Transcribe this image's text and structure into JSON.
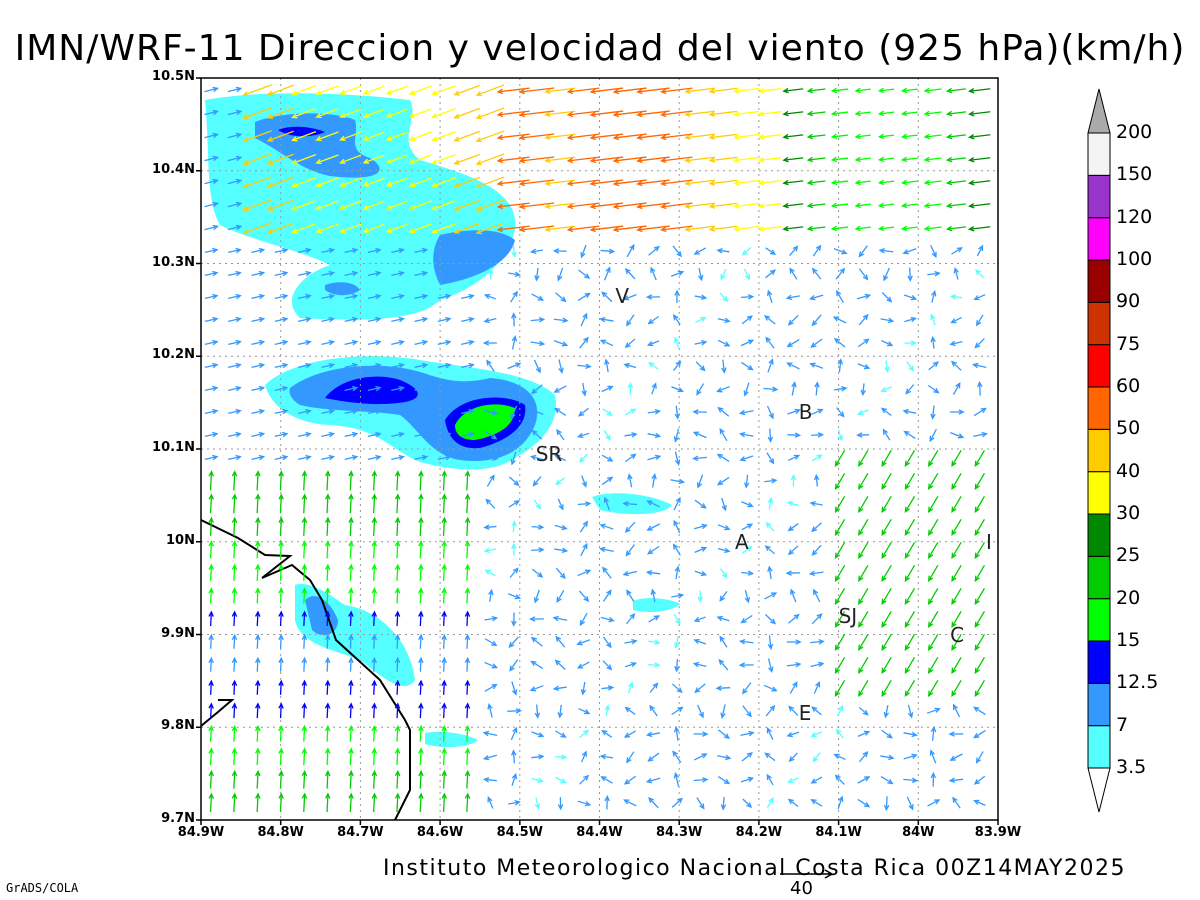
{
  "title": "IMN/WRF-11 Direccion y velocidad del viento (925 hPa)(km/h)",
  "footer": "Instituto Meteorologico Nacional Costa Rica 00Z14MAY2025",
  "software": "GrADS/COLA",
  "reference_vector": {
    "label": "40",
    "value": 40,
    "units": "km/h"
  },
  "axes": {
    "x_labels": [
      "84.9W",
      "84.8W",
      "84.7W",
      "84.6W",
      "84.5W",
      "84.4W",
      "84.3W",
      "84.2W",
      "84.1W",
      "84W",
      "83.9W"
    ],
    "y_labels": [
      "10.5N",
      "10.4N",
      "10.3N",
      "10.2N",
      "10.1N",
      "10N",
      "9.9N",
      "9.8N",
      "9.7N"
    ],
    "x_range": [
      -84.9,
      -83.9
    ],
    "y_range": [
      9.7,
      10.5
    ],
    "grid": "dotted"
  },
  "place_labels": [
    {
      "text": "V",
      "lon": -84.37,
      "lat": 10.265
    },
    {
      "text": "B",
      "lon": -84.14,
      "lat": 10.14
    },
    {
      "text": "SR",
      "lon": -84.47,
      "lat": 10.095
    },
    {
      "text": "A",
      "lon": -84.22,
      "lat": 10.0
    },
    {
      "text": "SJ",
      "lon": -84.09,
      "lat": 9.92
    },
    {
      "text": "C",
      "lon": -83.95,
      "lat": 9.9
    },
    {
      "text": "E",
      "lon": -84.14,
      "lat": 9.815
    },
    {
      "text": "I",
      "lon": -83.905,
      "lat": 10.0
    }
  ],
  "colorbar": {
    "levels": [
      "3.5",
      "7",
      "12.5",
      "15",
      "20",
      "25",
      "30",
      "40",
      "50",
      "60",
      "75",
      "90",
      "100",
      "120",
      "150",
      "200"
    ],
    "colors": [
      "#55ffff",
      "#3399ff",
      "#0000ff",
      "#00ff00",
      "#00cc00",
      "#008800",
      "#ffff00",
      "#ffcc00",
      "#ff6600",
      "#ff0000",
      "#cc3300",
      "#990000",
      "#ff00ff",
      "#9933cc",
      "#f4f4f4"
    ],
    "min_arrow_color": "#ffffff",
    "max_arrow_color": "#aaaaaa"
  }
}
